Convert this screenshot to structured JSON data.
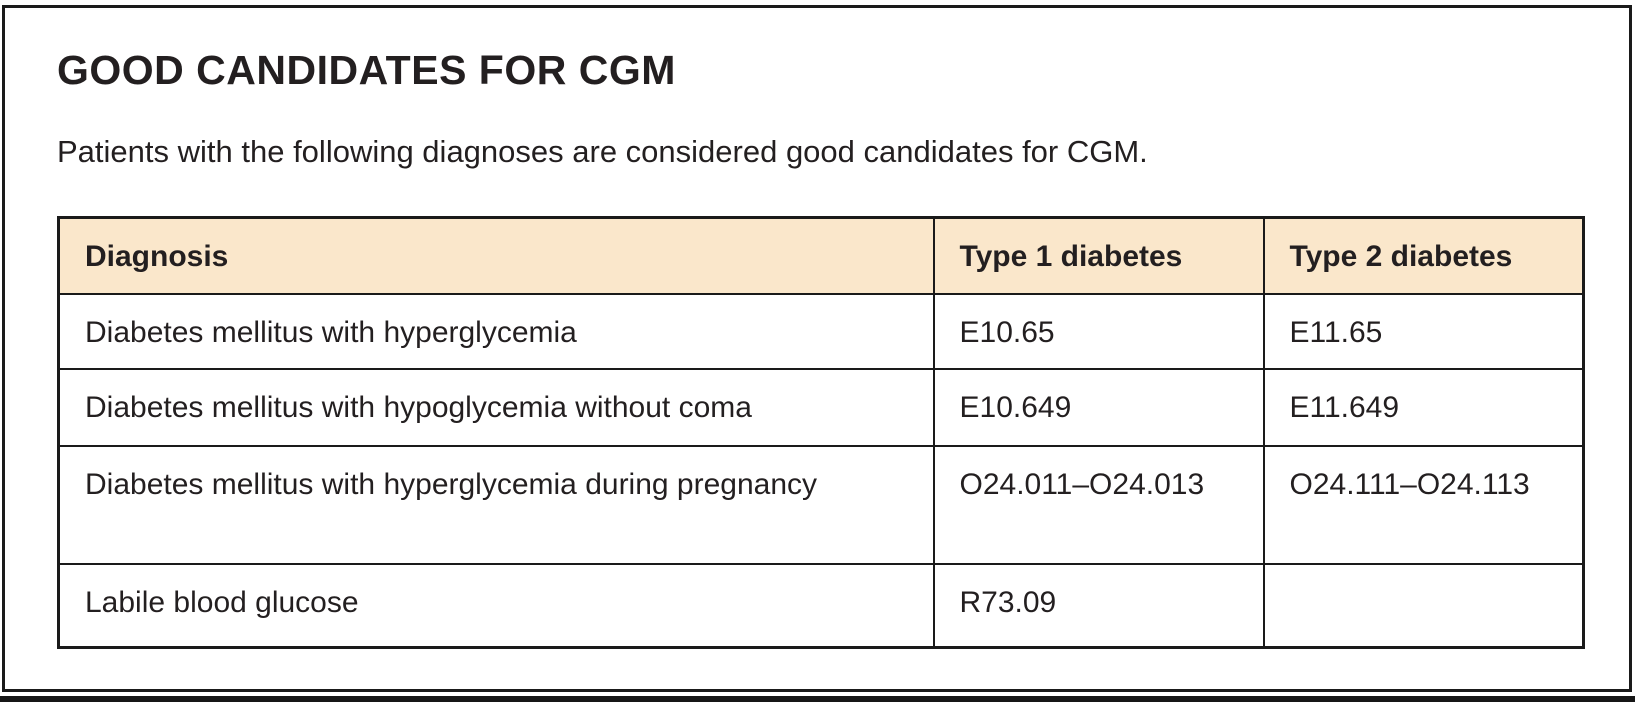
{
  "figure": {
    "title": "GOOD CANDIDATES FOR CGM",
    "intro": "Patients with the following diagnoses are considered good candidates for CGM."
  },
  "table": {
    "headers": [
      "Diagnosis",
      "Type 1 diabetes",
      "Type 2 diabetes"
    ],
    "rows": [
      [
        "Diabetes mellitus with hyperglycemia",
        "E10.65",
        "E11.65"
      ],
      [
        "Diabetes mellitus with hypoglycemia without coma",
        "E10.649",
        "E11.649"
      ],
      [
        "Diabetes mellitus with hyperglycemia during pregnancy",
        "O24.011–O24.013",
        "O24.111–O24.113"
      ],
      [
        "Labile blood glucose",
        "R73.09",
        ""
      ]
    ]
  },
  "colors": {
    "header_bg": "#FAE7CB",
    "border": "#1A1A1A",
    "text": "#231F20"
  }
}
